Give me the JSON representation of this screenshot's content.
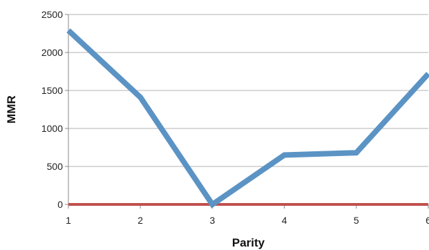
{
  "chart_data": {
    "type": "line",
    "title": "",
    "xlabel": "Parity",
    "ylabel": "MMR",
    "x": [
      1,
      2,
      3,
      4,
      5,
      6
    ],
    "x_ticks": [
      "1",
      "2",
      "3",
      "4",
      "5",
      "6"
    ],
    "y_ticks": [
      "0",
      "500",
      "1000",
      "1500",
      "2000",
      "2500"
    ],
    "ylim": [
      0,
      2500
    ],
    "xlim": [
      1,
      6
    ],
    "grid": true,
    "series": [
      {
        "name": "",
        "color": "#5b93c4",
        "values": [
          2290,
          1410,
          0,
          650,
          680,
          1720
        ]
      },
      {
        "name": "",
        "color": "#c0504d",
        "values": [
          0,
          0,
          0,
          0,
          0,
          0
        ]
      }
    ]
  }
}
